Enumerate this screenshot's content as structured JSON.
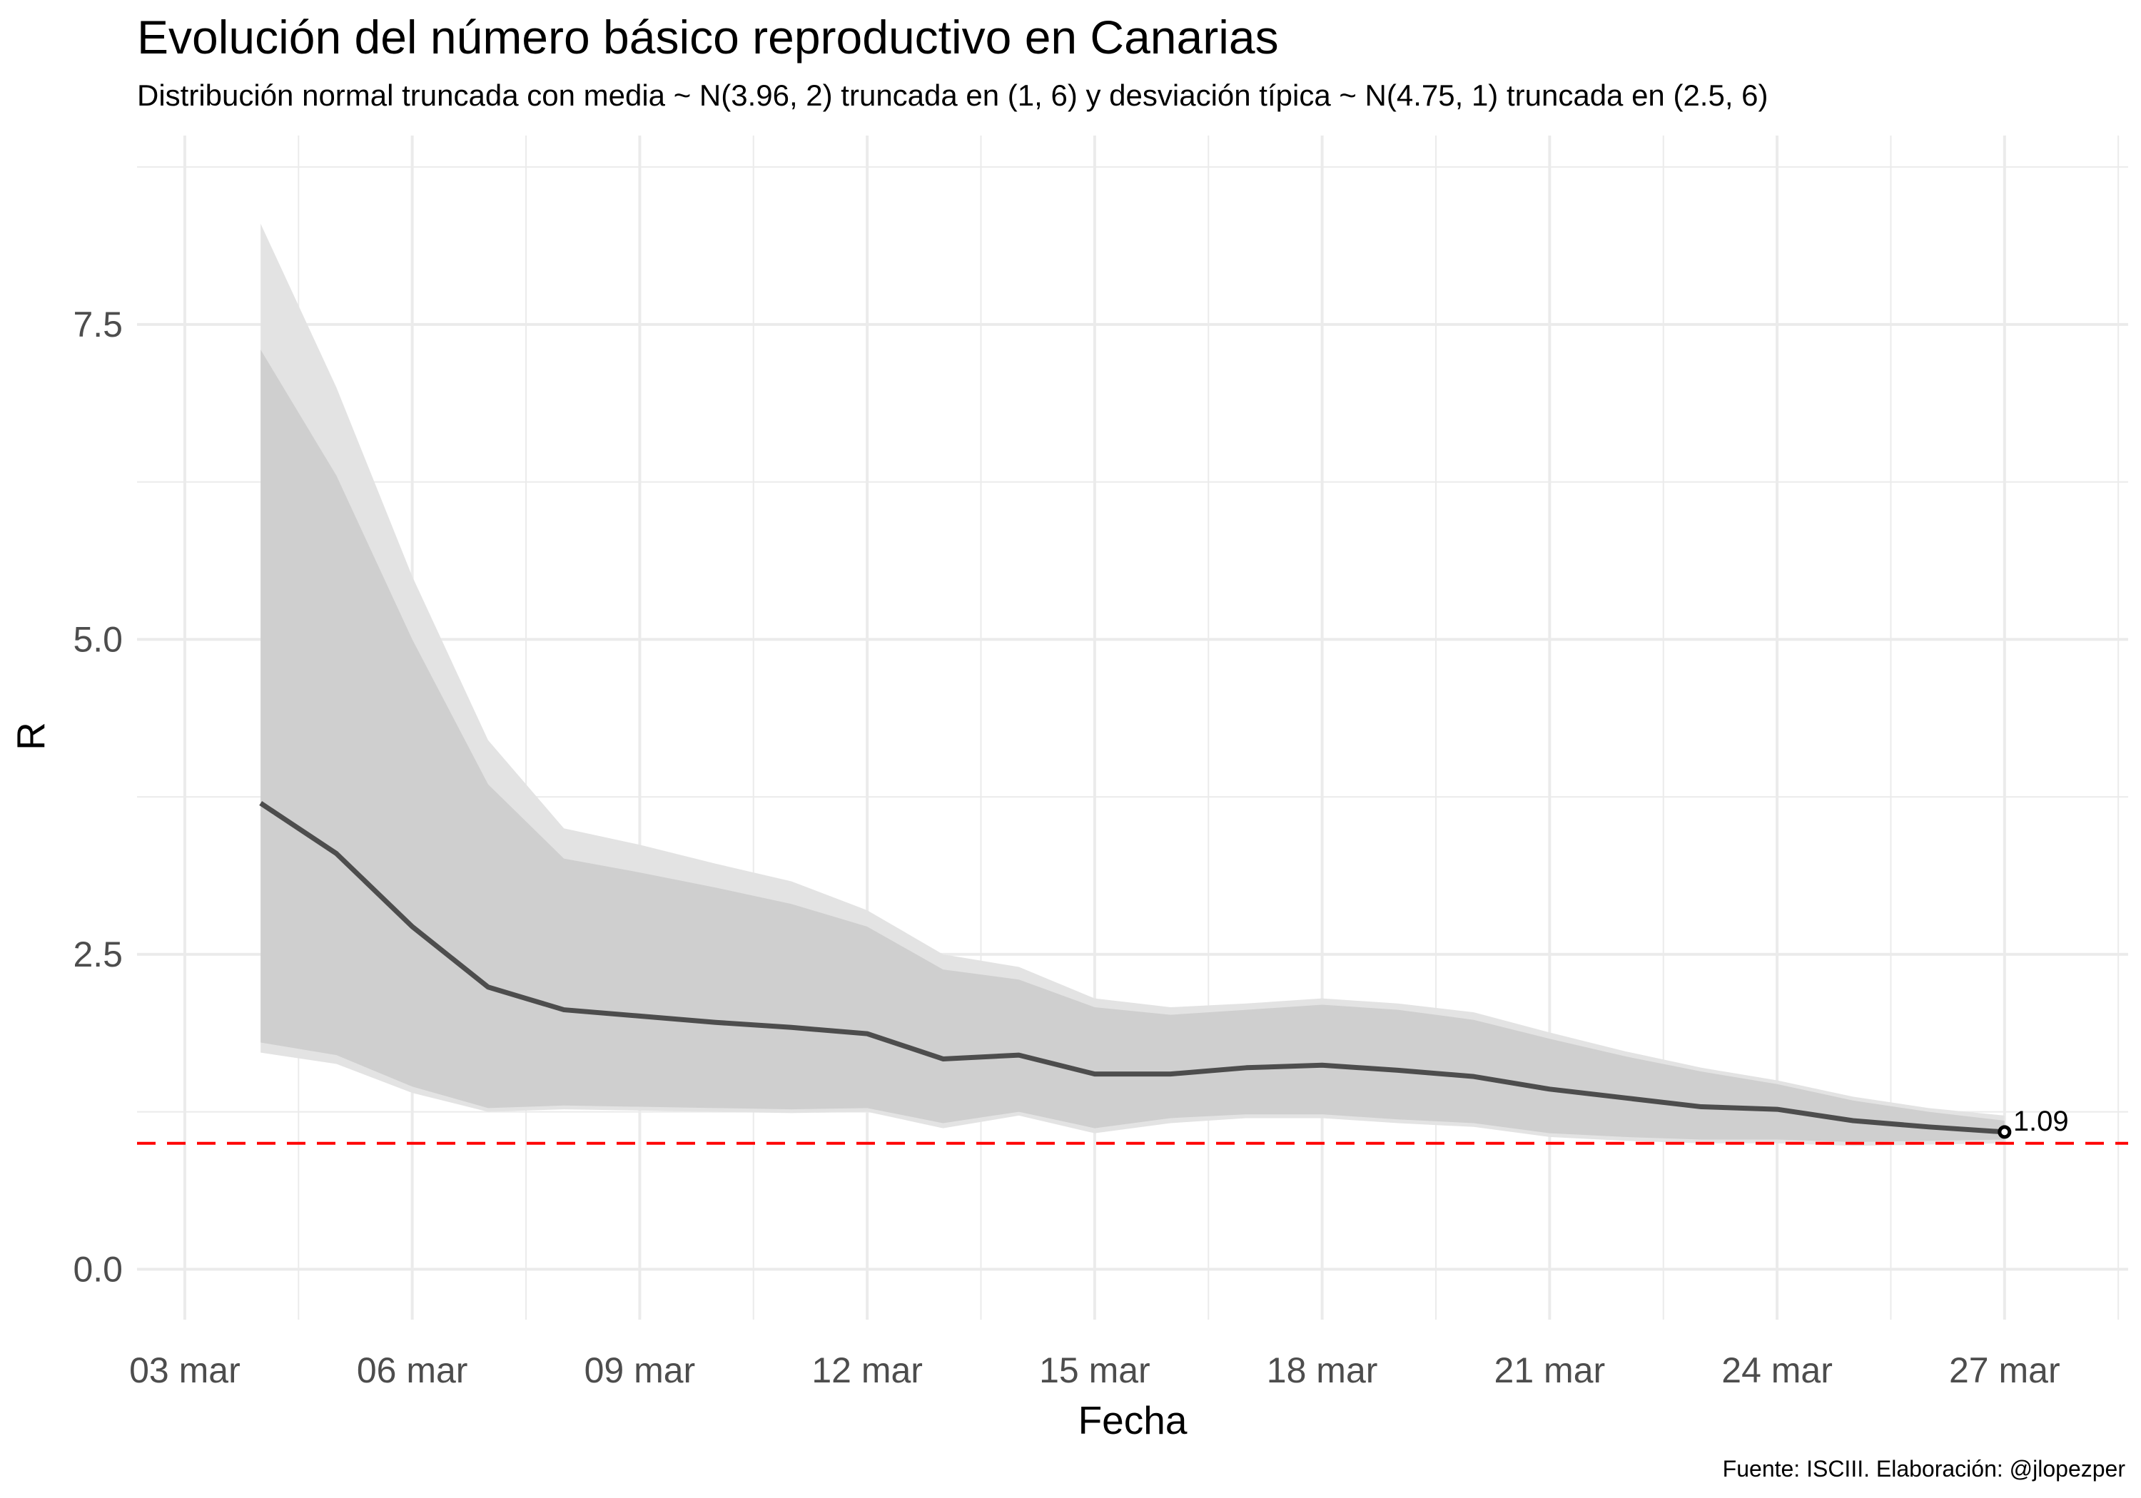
{
  "title": "Evolución del número básico reproductivo en Canarias",
  "subtitle": "Distribución normal truncada con media ~ N(3.96, 2) truncada en (1, 6) y desviación típica ~ N(4.75, 1) truncada en (2.5, 6)",
  "caption": "Fuente: ISCIII. Elaboración: @jlopezper",
  "colors": {
    "line": "#4d4d4d",
    "outer_band": "#e3e3e3",
    "inner_band": "#cfcfcf",
    "reference_line": "#ff0000",
    "grid": "#ebebeb"
  },
  "chart_data": {
    "type": "line",
    "title": "Evolución del número básico reproductivo en Canarias",
    "xlabel": "Fecha",
    "ylabel": "R",
    "x_tick_labels": [
      "03 mar",
      "06 mar",
      "09 mar",
      "12 mar",
      "15 mar",
      "18 mar",
      "21 mar",
      "24 mar",
      "27 mar"
    ],
    "x_tick_dates": [
      "2020-03-03",
      "2020-03-06",
      "2020-03-09",
      "2020-03-12",
      "2020-03-15",
      "2020-03-18",
      "2020-03-21",
      "2020-03-24",
      "2020-03-27"
    ],
    "y_tick_labels": [
      "0.0",
      "2.5",
      "5.0",
      "7.5"
    ],
    "y_ticks": [
      0,
      2.5,
      5,
      7.5
    ],
    "xlim": [
      "2020-03-03",
      "2020-03-28"
    ],
    "ylim": [
      -0.4,
      9.0
    ],
    "grid": true,
    "reference_line": {
      "y": 1.0,
      "style": "dashed",
      "color": "#ff0000"
    },
    "x": [
      "2020-03-04",
      "2020-03-05",
      "2020-03-06",
      "2020-03-07",
      "2020-03-08",
      "2020-03-09",
      "2020-03-10",
      "2020-03-11",
      "2020-03-12",
      "2020-03-13",
      "2020-03-14",
      "2020-03-15",
      "2020-03-16",
      "2020-03-17",
      "2020-03-18",
      "2020-03-19",
      "2020-03-20",
      "2020-03-21",
      "2020-03-22",
      "2020-03-23",
      "2020-03-24",
      "2020-03-25",
      "2020-03-26",
      "2020-03-27"
    ],
    "series": [
      {
        "values": [
          3.7,
          3.3,
          2.72,
          2.24,
          2.06,
          2.01,
          1.96,
          1.92,
          1.87,
          1.67,
          1.7,
          1.55,
          1.55,
          1.6,
          1.62,
          1.58,
          1.53,
          1.43,
          1.36,
          1.29,
          1.27,
          1.18,
          1.13,
          1.09
        ]
      }
    ],
    "bands": [
      {
        "level": "outer",
        "lower": [
          1.72,
          1.63,
          1.4,
          1.25,
          1.27,
          1.26,
          1.25,
          1.24,
          1.25,
          1.12,
          1.22,
          1.08,
          1.16,
          1.2,
          1.2,
          1.16,
          1.13,
          1.05,
          1.02,
          1.0,
          1.0,
          0.98,
          0.99,
          1.0
        ],
        "upper": [
          8.3,
          7.0,
          5.5,
          4.2,
          3.5,
          3.37,
          3.22,
          3.08,
          2.85,
          2.5,
          2.4,
          2.15,
          2.08,
          2.11,
          2.15,
          2.11,
          2.04,
          1.88,
          1.73,
          1.6,
          1.5,
          1.37,
          1.28,
          1.22
        ]
      },
      {
        "level": "inner",
        "lower": [
          1.8,
          1.7,
          1.45,
          1.28,
          1.3,
          1.29,
          1.28,
          1.27,
          1.28,
          1.16,
          1.25,
          1.12,
          1.2,
          1.23,
          1.23,
          1.19,
          1.16,
          1.08,
          1.05,
          1.03,
          1.03,
          1.01,
          1.02,
          1.03
        ],
        "upper": [
          7.3,
          6.3,
          5.0,
          3.85,
          3.26,
          3.15,
          3.03,
          2.9,
          2.72,
          2.38,
          2.3,
          2.08,
          2.02,
          2.06,
          2.1,
          2.06,
          1.98,
          1.83,
          1.69,
          1.57,
          1.47,
          1.34,
          1.25,
          1.18
        ]
      }
    ],
    "end_label": "1.09"
  }
}
